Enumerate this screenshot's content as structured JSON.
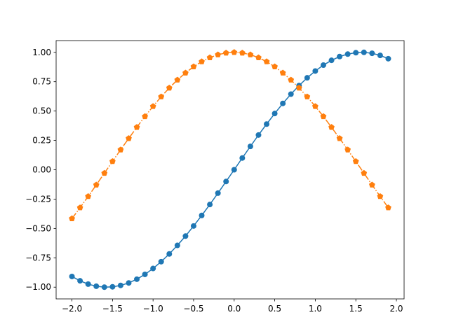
{
  "chart_data": {
    "type": "line",
    "title": "",
    "xlabel": "",
    "ylabel": "",
    "xlim": [
      -2.195,
      2.095
    ],
    "ylim": [
      -1.1,
      1.1
    ],
    "grid": false,
    "legend": "none",
    "x_ticks": [
      -2.0,
      -1.5,
      -1.0,
      -0.5,
      0.0,
      0.5,
      1.0,
      1.5,
      2.0
    ],
    "x_tick_labels": [
      "−2.0",
      "−1.5",
      "−1.0",
      "−0.5",
      "0.0",
      "0.5",
      "1.0",
      "1.5",
      "2.0"
    ],
    "y_ticks": [
      -1.0,
      -0.75,
      -0.5,
      -0.25,
      0.0,
      0.25,
      0.5,
      0.75,
      1.0
    ],
    "y_tick_labels": [
      "−1.00",
      "−0.75",
      "−0.50",
      "−0.25",
      "0.00",
      "0.25",
      "0.50",
      "0.75",
      "1.00"
    ],
    "x": [
      -2.0,
      -1.9,
      -1.8,
      -1.7,
      -1.6,
      -1.5,
      -1.4,
      -1.3,
      -1.2,
      -1.1,
      -1.0,
      -0.9,
      -0.8,
      -0.7,
      -0.6,
      -0.5,
      -0.4,
      -0.3,
      -0.2,
      -0.1,
      0.0,
      0.1,
      0.2,
      0.3,
      0.4,
      0.5,
      0.6,
      0.7,
      0.8,
      0.9,
      1.0,
      1.1,
      1.2,
      1.3,
      1.4,
      1.5,
      1.6,
      1.7,
      1.8,
      1.9
    ],
    "series": [
      {
        "color": "#1f77b4",
        "marker": "circle",
        "linestyle": "solid",
        "values": [
          -0.909,
          -0.946,
          -0.974,
          -0.992,
          -1.0,
          -0.997,
          -0.985,
          -0.964,
          -0.932,
          -0.891,
          -0.841,
          -0.783,
          -0.717,
          -0.644,
          -0.565,
          -0.479,
          -0.389,
          -0.296,
          -0.199,
          -0.1,
          0.0,
          0.1,
          0.199,
          0.296,
          0.389,
          0.479,
          0.565,
          0.644,
          0.717,
          0.783,
          0.841,
          0.891,
          0.932,
          0.964,
          0.985,
          0.997,
          1.0,
          0.992,
          0.974,
          0.946
        ]
      },
      {
        "color": "#ff7f0e",
        "marker": "pentagon",
        "linestyle": "dash-dot",
        "values": [
          -0.416,
          -0.323,
          -0.227,
          -0.129,
          -0.029,
          0.071,
          0.17,
          0.267,
          0.362,
          0.454,
          0.54,
          0.622,
          0.697,
          0.765,
          0.825,
          0.878,
          0.921,
          0.955,
          0.98,
          0.995,
          1.0,
          0.995,
          0.98,
          0.955,
          0.921,
          0.878,
          0.825,
          0.765,
          0.697,
          0.622,
          0.54,
          0.454,
          0.362,
          0.267,
          0.17,
          0.071,
          -0.029,
          -0.129,
          -0.227,
          -0.323
        ]
      }
    ]
  }
}
